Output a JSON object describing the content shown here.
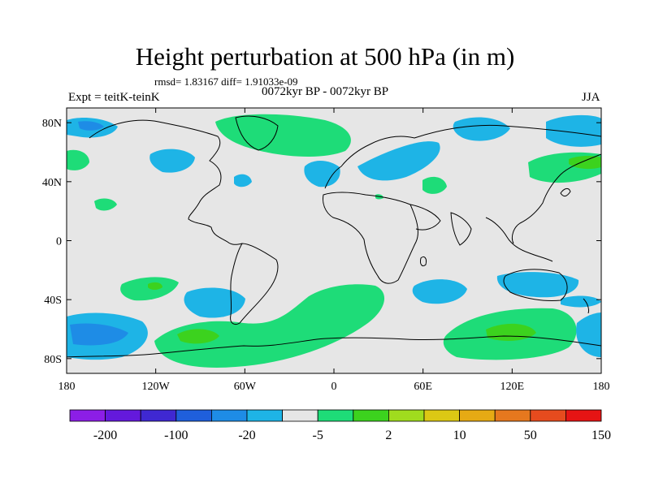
{
  "title": "Height perturbation at 500 hPa (in m)",
  "stats_line": "rmsd= 1.83167 diff= 1.91033e-09",
  "experiment": "Expt = teitK-teinK",
  "period": "0072kyr BP - 0072kyr BP",
  "season": "JJA",
  "map": {
    "lon_ticks": [
      "180",
      "120W",
      "60W",
      "0",
      "60E",
      "120E",
      "180"
    ],
    "lat_ticks": [
      "80N",
      "40N",
      "0",
      "40S",
      "80S"
    ]
  },
  "colorbar": {
    "colors": [
      "#8c1ee6",
      "#6419dc",
      "#3f28d2",
      "#1f5fdc",
      "#1e8ce6",
      "#1eb4e6",
      "#e6e6e6",
      "#1edc78",
      "#3cd21e",
      "#a0dc1e",
      "#dcc814",
      "#e6aa14",
      "#e6781e",
      "#e64b1e",
      "#e61414"
    ],
    "labels": [
      "-200",
      "-100",
      "-20",
      "-5",
      "2",
      "10",
      "50",
      "150"
    ]
  },
  "palette": {
    "blue_light": "#1eb4e6",
    "blue_mid": "#1e8ce6",
    "green_light": "#1edc78",
    "green_mid": "#3cd21e",
    "background": "#e6e6e6"
  }
}
